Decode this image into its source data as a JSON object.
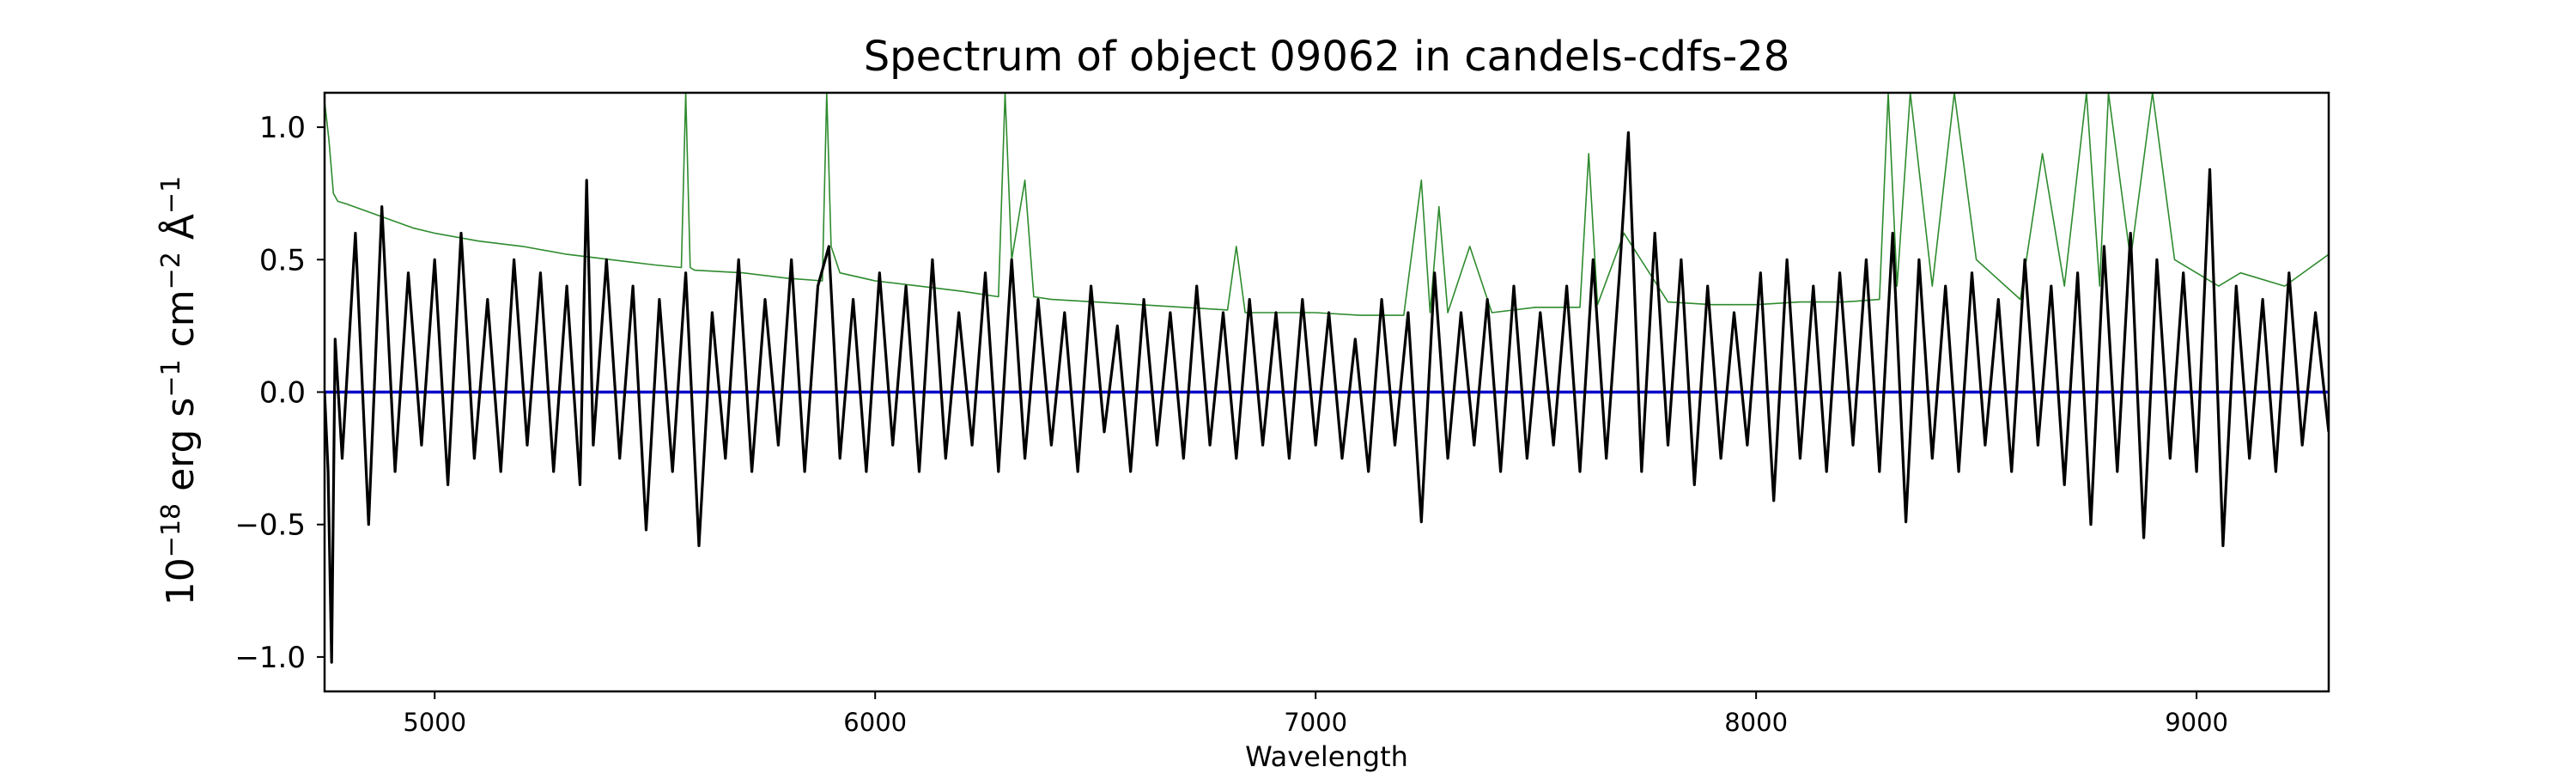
{
  "chart_data": {
    "type": "line",
    "title": "Spectrum of object 09062 in candels-cdfs-28",
    "xlabel": "Wavelength",
    "ylabel_parts": [
      "10",
      "−18",
      " erg s",
      "−1",
      " cm",
      "−2",
      " Å",
      "−1"
    ],
    "xlim": [
      4750,
      9300
    ],
    "ylim": [
      -1.13,
      1.13
    ],
    "xticks": [
      5000,
      6000,
      7000,
      8000,
      9000
    ],
    "yticks": [
      -1.0,
      -0.5,
      0.0,
      0.5,
      1.0
    ],
    "ytick_labels": [
      "−1.0",
      "−0.5",
      "0.0",
      "0.5",
      "1.0"
    ],
    "grid": false,
    "colors": {
      "flux": "#000000",
      "error": "#2e8b2e",
      "zero": "#0000cc"
    },
    "series": [
      {
        "role": "flux",
        "x": [
          4750,
          4758,
          4766,
          4774,
          4790,
          4820,
          4850,
          4880,
          4910,
          4940,
          4970,
          5000,
          5030,
          5060,
          5090,
          5120,
          5150,
          5180,
          5210,
          5240,
          5270,
          5300,
          5330,
          5345,
          5360,
          5390,
          5420,
          5450,
          5480,
          5510,
          5540,
          5570,
          5600,
          5630,
          5660,
          5690,
          5720,
          5750,
          5780,
          5810,
          5840,
          5870,
          5895,
          5920,
          5950,
          5980,
          6010,
          6040,
          6070,
          6100,
          6130,
          6160,
          6190,
          6220,
          6250,
          6280,
          6310,
          6340,
          6370,
          6400,
          6430,
          6460,
          6490,
          6520,
          6550,
          6580,
          6610,
          6640,
          6670,
          6700,
          6730,
          6760,
          6790,
          6820,
          6850,
          6880,
          6910,
          6940,
          6970,
          7000,
          7030,
          7060,
          7090,
          7120,
          7150,
          7180,
          7210,
          7240,
          7270,
          7300,
          7330,
          7360,
          7390,
          7420,
          7450,
          7480,
          7510,
          7540,
          7570,
          7600,
          7630,
          7660,
          7690,
          7710,
          7740,
          7770,
          7800,
          7830,
          7860,
          7890,
          7920,
          7950,
          7980,
          8010,
          8040,
          8070,
          8100,
          8130,
          8160,
          8190,
          8220,
          8250,
          8280,
          8310,
          8340,
          8370,
          8400,
          8430,
          8460,
          8490,
          8520,
          8550,
          8580,
          8610,
          8640,
          8670,
          8700,
          8730,
          8760,
          8790,
          8820,
          8850,
          8880,
          8910,
          8940,
          8970,
          9000,
          9030,
          9060,
          9090,
          9120,
          9150,
          9180,
          9210,
          9240,
          9270,
          9300
        ],
        "y": [
          0.0,
          -0.3,
          -1.02,
          0.2,
          -0.25,
          0.6,
          -0.5,
          0.7,
          -0.3,
          0.45,
          -0.2,
          0.5,
          -0.35,
          0.6,
          -0.25,
          0.35,
          -0.3,
          0.5,
          -0.2,
          0.45,
          -0.3,
          0.4,
          -0.35,
          0.8,
          -0.2,
          0.5,
          -0.25,
          0.4,
          -0.52,
          0.35,
          -0.3,
          0.45,
          -0.58,
          0.3,
          -0.25,
          0.5,
          -0.3,
          0.35,
          -0.2,
          0.5,
          -0.3,
          0.4,
          0.55,
          -0.25,
          0.35,
          -0.3,
          0.45,
          -0.2,
          0.4,
          -0.3,
          0.5,
          -0.25,
          0.3,
          -0.2,
          0.45,
          -0.3,
          0.5,
          -0.25,
          0.35,
          -0.2,
          0.3,
          -0.3,
          0.4,
          -0.15,
          0.25,
          -0.3,
          0.35,
          -0.2,
          0.3,
          -0.25,
          0.4,
          -0.2,
          0.3,
          -0.25,
          0.35,
          -0.2,
          0.3,
          -0.25,
          0.35,
          -0.2,
          0.3,
          -0.25,
          0.2,
          -0.3,
          0.35,
          -0.2,
          0.3,
          -0.49,
          0.45,
          -0.25,
          0.3,
          -0.2,
          0.35,
          -0.3,
          0.4,
          -0.25,
          0.3,
          -0.2,
          0.4,
          -0.3,
          0.5,
          -0.25,
          0.45,
          0.98,
          -0.3,
          0.6,
          -0.2,
          0.5,
          -0.35,
          0.4,
          -0.25,
          0.3,
          -0.2,
          0.45,
          -0.41,
          0.5,
          -0.25,
          0.4,
          -0.3,
          0.45,
          -0.2,
          0.5,
          -0.3,
          0.6,
          -0.49,
          0.5,
          -0.25,
          0.4,
          -0.3,
          0.45,
          -0.2,
          0.35,
          -0.3,
          0.5,
          -0.2,
          0.4,
          -0.35,
          0.45,
          -0.5,
          0.55,
          -0.3,
          0.6,
          -0.55,
          0.5,
          -0.25,
          0.45,
          -0.3,
          0.84,
          -0.58,
          0.4,
          -0.25,
          0.35,
          -0.3,
          0.45,
          -0.2,
          0.3,
          -0.15
        ]
      },
      {
        "role": "error",
        "x": [
          4750,
          4760,
          4770,
          4780,
          4800,
          4850,
          4900,
          4950,
          5000,
          5100,
          5200,
          5300,
          5400,
          5500,
          5560,
          5570,
          5580,
          5590,
          5700,
          5800,
          5880,
          5890,
          5900,
          5920,
          6000,
          6100,
          6200,
          6280,
          6295,
          6310,
          6340,
          6360,
          6400,
          6500,
          6600,
          6700,
          6800,
          6820,
          6840,
          6900,
          7000,
          7100,
          7200,
          7240,
          7260,
          7280,
          7300,
          7350,
          7400,
          7500,
          7600,
          7620,
          7640,
          7700,
          7800,
          7900,
          8000,
          8100,
          8200,
          8280,
          8300,
          8320,
          8350,
          8400,
          8450,
          8500,
          8600,
          8650,
          8700,
          8750,
          8780,
          8800,
          8850,
          8900,
          8950,
          9000,
          9050,
          9100,
          9200,
          9300
        ],
        "y": [
          1.1,
          0.95,
          0.75,
          0.72,
          0.71,
          0.68,
          0.65,
          0.62,
          0.6,
          0.57,
          0.55,
          0.52,
          0.5,
          0.48,
          0.47,
          1.13,
          0.47,
          0.46,
          0.45,
          0.43,
          0.42,
          1.13,
          0.55,
          0.45,
          0.42,
          0.4,
          0.38,
          0.36,
          1.13,
          0.5,
          0.8,
          0.36,
          0.35,
          0.34,
          0.33,
          0.32,
          0.31,
          0.55,
          0.3,
          0.3,
          0.3,
          0.29,
          0.29,
          0.8,
          0.3,
          0.7,
          0.3,
          0.55,
          0.3,
          0.32,
          0.32,
          0.9,
          0.33,
          0.6,
          0.34,
          0.33,
          0.33,
          0.34,
          0.34,
          0.35,
          1.13,
          0.4,
          1.13,
          0.4,
          1.13,
          0.5,
          0.35,
          0.9,
          0.4,
          1.13,
          0.4,
          1.13,
          0.5,
          1.13,
          0.5,
          0.45,
          0.4,
          0.45,
          0.4,
          0.52
        ]
      },
      {
        "role": "zero",
        "x": [
          4750,
          9300
        ],
        "y": [
          0.0,
          0.0
        ]
      }
    ]
  }
}
